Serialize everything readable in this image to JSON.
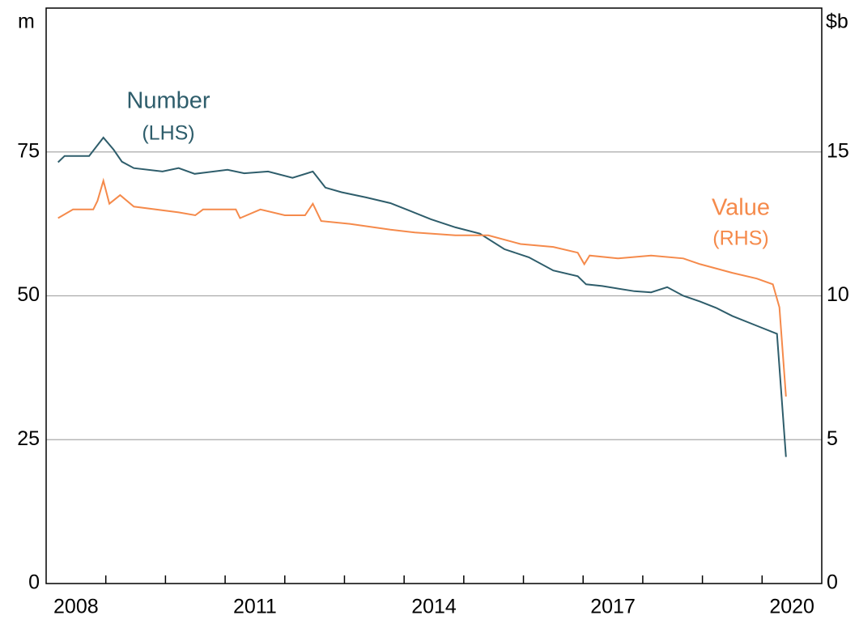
{
  "chart_data": {
    "type": "line",
    "y_label": "m",
    "y2_label": "$b",
    "xlim": [
      2008,
      2021
    ],
    "xticks": [
      {
        "value": 2008.5,
        "label": "2008"
      },
      {
        "value": 2011.5,
        "label": "2011"
      },
      {
        "value": 2014.5,
        "label": "2014"
      },
      {
        "value": 2017.5,
        "label": "2017"
      },
      {
        "value": 2020.5,
        "label": "2020"
      }
    ],
    "xtick_marks": [
      2009,
      2010,
      2011,
      2012,
      2013,
      2014,
      2015,
      2016,
      2017,
      2018,
      2019,
      2020
    ],
    "ylim": [
      0,
      100
    ],
    "yticks": [
      0,
      25,
      50,
      75
    ],
    "y2lim": [
      0,
      20
    ],
    "y2ticks": [
      0,
      5,
      10,
      15
    ],
    "grid": true,
    "series": [
      {
        "name": "Number",
        "note": "(LHS)",
        "color": "#2e5d6b",
        "x": [
          2008.2,
          2008.31,
          2008.72,
          2008.96,
          2009.13,
          2009.27,
          2009.47,
          2009.95,
          2010.22,
          2010.49,
          2011.04,
          2011.32,
          2011.72,
          2012.13,
          2012.47,
          2012.68,
          2012.95,
          2013.36,
          2013.77,
          2014.04,
          2014.45,
          2014.86,
          2015.27,
          2015.68,
          2016.09,
          2016.5,
          2016.91,
          2017.05,
          2017.32,
          2017.86,
          2018.14,
          2018.41,
          2018.68,
          2018.96,
          2019.23,
          2019.5,
          2019.91,
          2020.25,
          2020.4
        ],
        "values": [
          73.2,
          74.3,
          74.3,
          77.5,
          75.4,
          73.3,
          72.2,
          71.6,
          72.2,
          71.2,
          71.9,
          71.3,
          71.6,
          70.5,
          71.6,
          68.8,
          68.0,
          67.1,
          66.1,
          65.0,
          63.3,
          61.9,
          60.8,
          58.1,
          56.7,
          54.4,
          53.4,
          52.0,
          51.7,
          50.8,
          50.6,
          51.5,
          50.0,
          49.0,
          47.9,
          46.5,
          44.8,
          43.4,
          22.0
        ]
      },
      {
        "name": "Value",
        "note": "(RHS)",
        "color": "#f58a4b",
        "axis": "y2",
        "x": [
          2008.2,
          2008.45,
          2008.79,
          2008.86,
          2008.96,
          2009.06,
          2009.24,
          2009.47,
          2010.22,
          2010.5,
          2010.63,
          2011.18,
          2011.25,
          2011.59,
          2012.0,
          2012.34,
          2012.47,
          2012.61,
          2013.09,
          2013.77,
          2014.18,
          2014.86,
          2015.41,
          2015.95,
          2016.5,
          2016.91,
          2017.02,
          2017.11,
          2017.59,
          2018.14,
          2018.68,
          2018.96,
          2019.5,
          2019.91,
          2020.18,
          2020.29,
          2020.4
        ],
        "values": [
          12.7,
          13.0,
          13.0,
          13.3,
          14.0,
          13.2,
          13.5,
          13.1,
          12.9,
          12.8,
          13.0,
          13.0,
          12.7,
          13.0,
          12.8,
          12.8,
          13.2,
          12.6,
          12.5,
          12.3,
          12.2,
          12.1,
          12.1,
          11.8,
          11.7,
          11.5,
          11.1,
          11.4,
          11.3,
          11.4,
          11.3,
          11.1,
          10.8,
          10.6,
          10.4,
          9.6,
          6.5
        ]
      }
    ]
  }
}
